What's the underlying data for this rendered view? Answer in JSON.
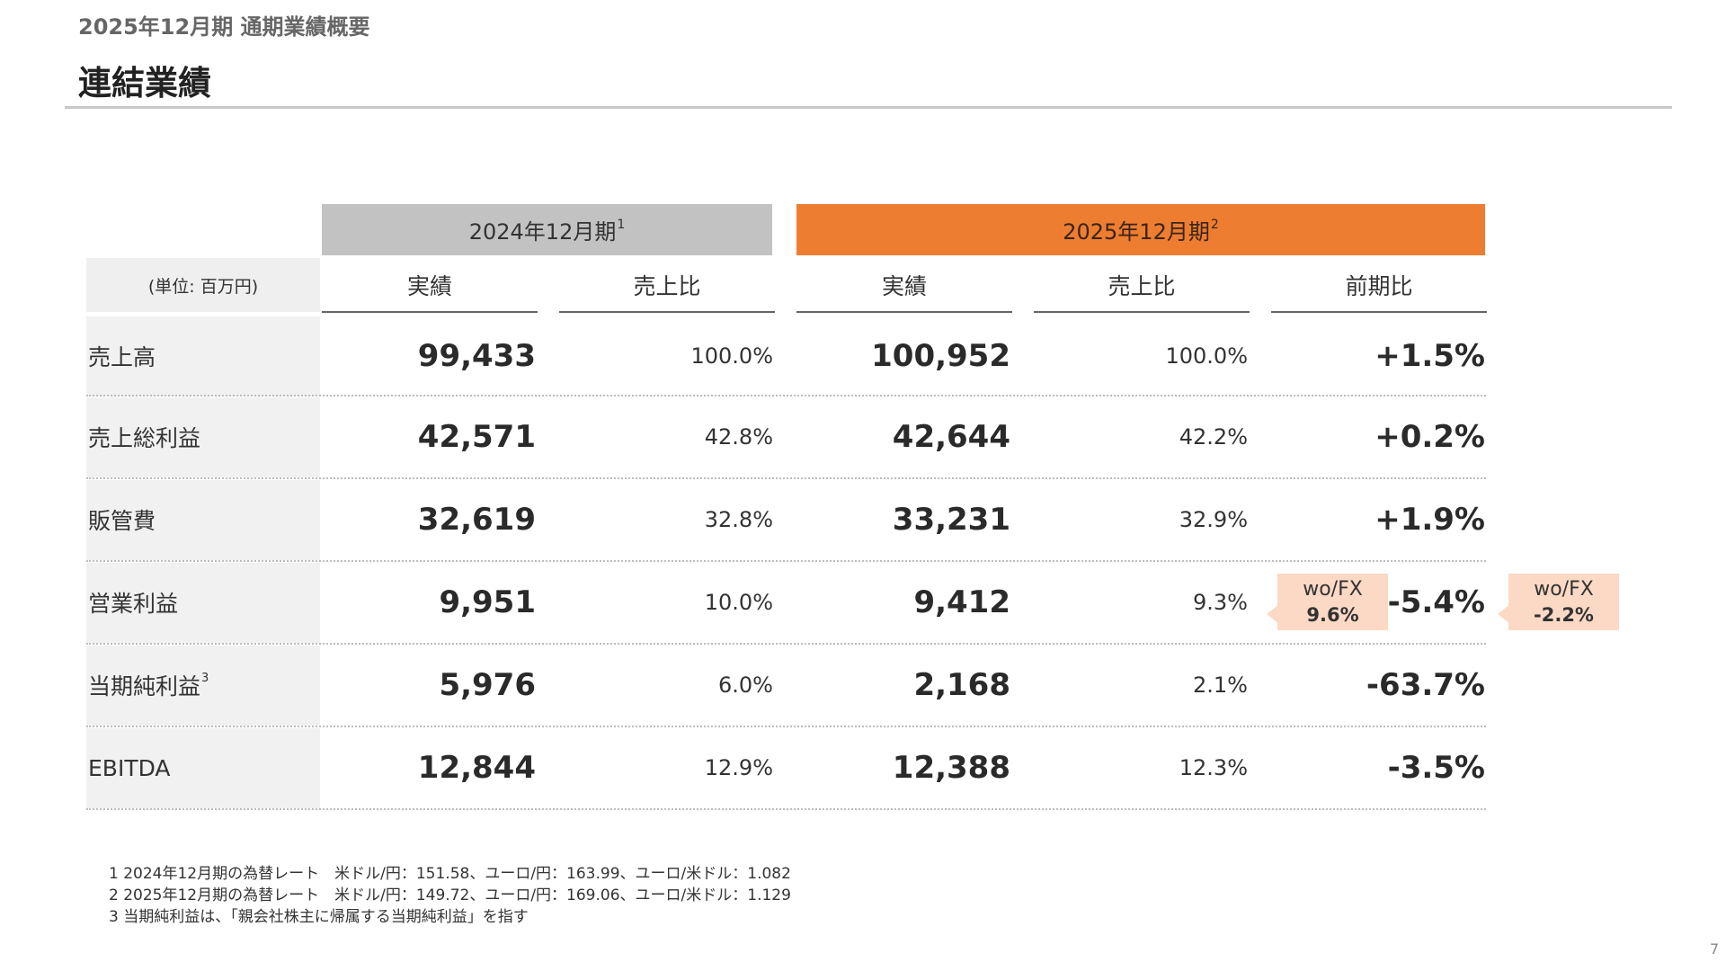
{
  "header": {
    "subtitle": "2025年12月期 通期業績概要",
    "title": "連結業績"
  },
  "table": {
    "period_2024": {
      "label": "2024年12月期",
      "note": "1"
    },
    "period_2025": {
      "label": "2025年12月期",
      "note": "2"
    },
    "unit_label": "(単位: 百万円)",
    "columns": {
      "actual_2024": "実績",
      "ratio_2024": "売上比",
      "actual_2025": "実績",
      "ratio_2025": "売上比",
      "yoy": "前期比"
    },
    "rows": [
      {
        "label": "売上高",
        "note": "",
        "actual_2024": "99,433",
        "ratio_2024": "100.0%",
        "actual_2025": "100,952",
        "ratio_2025": "100.0%",
        "yoy": "+1.5%"
      },
      {
        "label": "売上総利益",
        "note": "",
        "actual_2024": "42,571",
        "ratio_2024": "42.8%",
        "actual_2025": "42,644",
        "ratio_2025": "42.2%",
        "yoy": "+0.2%"
      },
      {
        "label": "販管費",
        "note": "",
        "actual_2024": "32,619",
        "ratio_2024": "32.8%",
        "actual_2025": "33,231",
        "ratio_2025": "32.9%",
        "yoy": "+1.9%"
      },
      {
        "label": "営業利益",
        "note": "",
        "actual_2024": "9,951",
        "ratio_2024": "10.0%",
        "actual_2025": "9,412",
        "ratio_2025": "9.3%",
        "yoy": "-5.4%"
      },
      {
        "label": "当期純利益",
        "note": "3",
        "actual_2024": "5,976",
        "ratio_2024": "6.0%",
        "actual_2025": "2,168",
        "ratio_2025": "2.1%",
        "yoy": "-63.7%"
      },
      {
        "label": "EBITDA",
        "note": "",
        "actual_2024": "12,844",
        "ratio_2024": "12.9%",
        "actual_2025": "12,388",
        "ratio_2025": "12.3%",
        "yoy": "-3.5%"
      }
    ],
    "callouts": {
      "ratio": {
        "label": "wo/FX",
        "value": "9.6%"
      },
      "yoy": {
        "label": "wo/FX",
        "value": "-2.2%"
      }
    }
  },
  "footnotes": [
    "1 2024年12月期の為替レート　米ドル/円：151.58、ユーロ/円：163.99、ユーロ/米ドル：1.082",
    "2 2025年12月期の為替レート　米ドル/円：149.72、ユーロ/円：169.06、ユーロ/米ドル：1.129",
    "3 当期純利益は、「親会社株主に帰属する当期純利益」を指す"
  ],
  "page_number": "7"
}
